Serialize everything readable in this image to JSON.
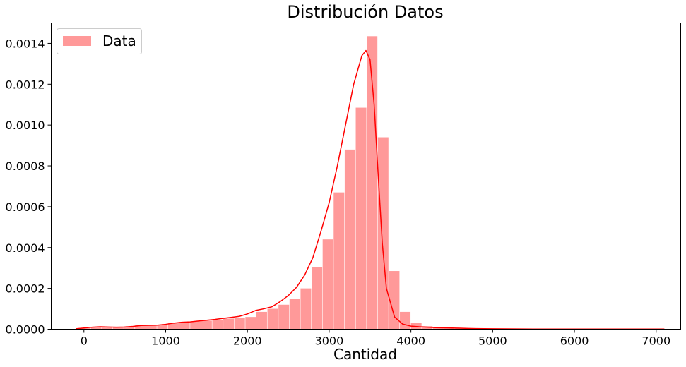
{
  "chart_data": {
    "type": "bar",
    "title": "Distribución Datos",
    "xlabel": "Cantidad",
    "ylabel": "",
    "xlim": [
      -400,
      7300
    ],
    "ylim": [
      0,
      0.0015
    ],
    "xticks": [
      "0",
      "1000",
      "2000",
      "3000",
      "4000",
      "5000",
      "6000",
      "7000"
    ],
    "yticks": [
      "0.0000",
      "0.0002",
      "0.0004",
      "0.0006",
      "0.0008",
      "0.0010",
      "0.0012",
      "0.0014"
    ],
    "grid": false,
    "legend_position": "top-left",
    "bar_color": "#ff9999",
    "line_color": "#ff0000",
    "series": [
      {
        "name": "Data",
        "kind": "histogram",
        "bin_edges": [
          -50,
          85,
          220,
          355,
          490,
          625,
          760,
          895,
          1030,
          1165,
          1300,
          1435,
          1570,
          1705,
          1840,
          1975,
          2110,
          2245,
          2380,
          2515,
          2650,
          2785,
          2920,
          3055,
          3190,
          3325,
          3460,
          3595,
          3730,
          3865,
          4000,
          4135,
          4270,
          4405,
          4540,
          4675,
          4810,
          4945,
          5080,
          5215,
          5350,
          5485,
          5620,
          5755,
          5890,
          6025,
          6160,
          6295,
          6430,
          6565,
          6700,
          6835,
          6970,
          7105
        ],
        "values": [
          5e-06,
          1.2e-05,
          1.2e-05,
          1e-05,
          1.4e-05,
          2e-05,
          2e-05,
          2.2e-05,
          3e-05,
          3.5e-05,
          3.8e-05,
          4.2e-05,
          4.6e-05,
          5.2e-05,
          5.7e-05,
          6e-05,
          8.5e-05,
          0.0001,
          0.00012,
          0.00015,
          0.0002,
          0.000305,
          0.00044,
          0.00067,
          0.00088,
          0.001085,
          0.001435,
          0.00094,
          0.000285,
          8.5e-05,
          3e-05,
          1.5e-05,
          1e-05,
          8e-06,
          6e-06,
          4e-06,
          3e-06,
          2e-06,
          2e-06,
          2e-06,
          1e-06,
          1e-06,
          1e-06,
          1e-06,
          1e-06,
          1e-06,
          1e-06,
          1e-06,
          1e-06,
          1e-06,
          1e-06,
          1e-06,
          1e-06
        ]
      },
      {
        "name": "",
        "kind": "kde",
        "x": [
          -100,
          0,
          100,
          200,
          300,
          400,
          500,
          600,
          700,
          800,
          900,
          1000,
          1100,
          1200,
          1300,
          1400,
          1500,
          1600,
          1700,
          1800,
          1900,
          2000,
          2100,
          2200,
          2300,
          2400,
          2500,
          2600,
          2700,
          2800,
          2900,
          3000,
          3100,
          3200,
          3300,
          3400,
          3450,
          3500,
          3550,
          3600,
          3650,
          3700,
          3800,
          3900,
          4000,
          4100,
          4200,
          4300,
          4400,
          4500,
          4600,
          4700,
          4800,
          5000,
          5500,
          6000,
          6500,
          7000,
          7100
        ],
        "y": [
          2e-06,
          6e-06,
          1e-05,
          1.2e-05,
          1.1e-05,
          1e-05,
          1.1e-05,
          1.4e-05,
          1.8e-05,
          1.9e-05,
          2e-05,
          2.4e-05,
          3e-05,
          3.4e-05,
          3.6e-05,
          4e-05,
          4.4e-05,
          4.8e-05,
          5.3e-05,
          5.8e-05,
          6.3e-05,
          7.5e-05,
          9.2e-05,
          0.0001,
          0.00011,
          0.000135,
          0.000165,
          0.000205,
          0.000265,
          0.00035,
          0.00048,
          0.00062,
          0.0008,
          0.001,
          0.0012,
          0.00134,
          0.001365,
          0.00132,
          0.0011,
          0.00075,
          0.00042,
          0.0002,
          6e-05,
          2.5e-05,
          1.5e-05,
          1.2e-05,
          1e-05,
          8e-06,
          7e-06,
          6e-06,
          5e-06,
          4e-06,
          3e-06,
          2e-06,
          1e-06,
          1e-06,
          1e-06,
          1e-06,
          1e-06
        ]
      }
    ]
  }
}
